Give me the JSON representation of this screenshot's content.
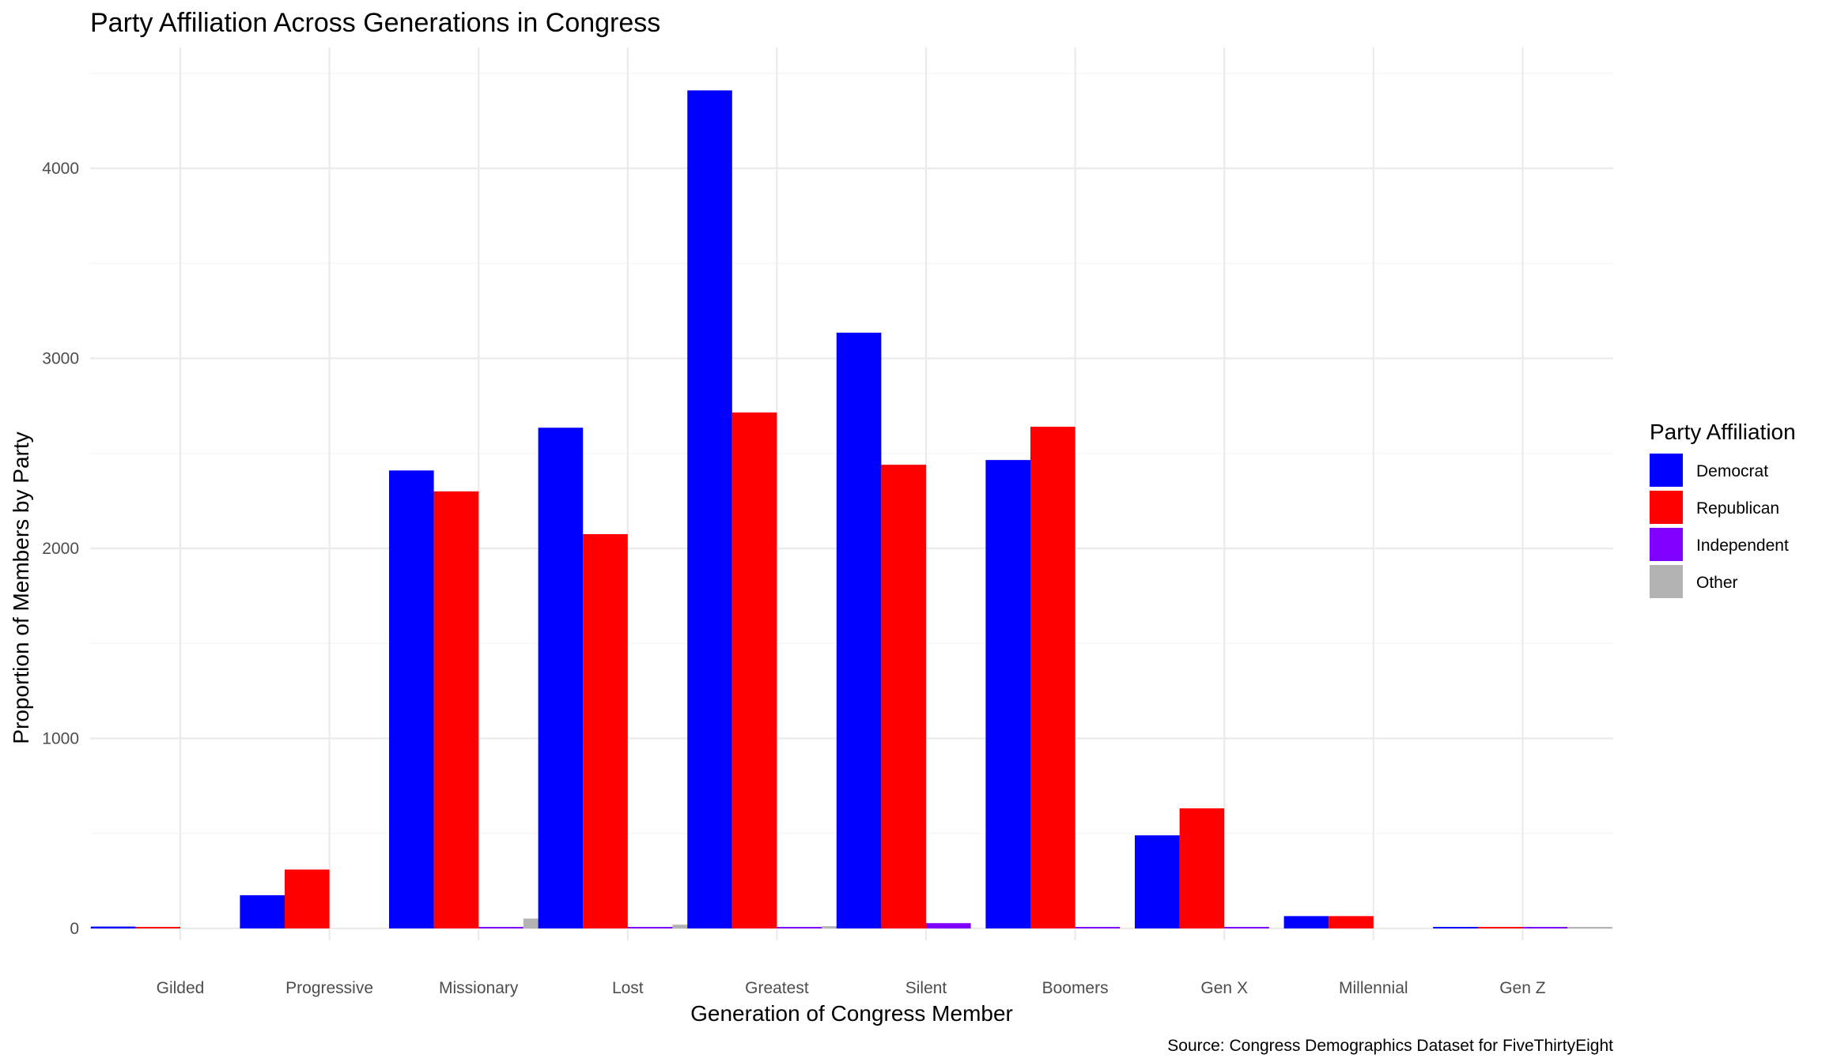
{
  "chart_data": {
    "type": "bar",
    "title": "Party Affiliation Across Generations in Congress",
    "xlabel": "Generation of Congress Member",
    "ylabel": "Proportion of Members by Party",
    "caption": "Source: Congress Demographics Dataset for FiveThirtyEight",
    "categories": [
      "Gilded",
      "Progressive",
      "Missionary",
      "Lost",
      "Greatest",
      "Silent",
      "Boomers",
      "Gen X",
      "Millennial",
      "Gen Z"
    ],
    "ylim": [
      0,
      4500
    ],
    "yticks": [
      0,
      1000,
      2000,
      3000,
      4000
    ],
    "grid": true,
    "legend": {
      "title": "Party Affiliation",
      "position": "right"
    },
    "series": [
      {
        "name": "Democrat",
        "color": "#0000FF",
        "values": [
          10,
          175,
          2410,
          2635,
          4410,
          3135,
          2465,
          490,
          65,
          2
        ]
      },
      {
        "name": "Republican",
        "color": "#FF0000",
        "values": [
          5,
          310,
          2300,
          2075,
          2715,
          2440,
          2640,
          632,
          65,
          2
        ]
      },
      {
        "name": "Independent",
        "color": "#8000FF",
        "values": [
          0,
          0,
          5,
          5,
          8,
          28,
          5,
          5,
          0,
          2
        ]
      },
      {
        "name": "Other",
        "color": "#B3B3B3",
        "values": [
          0,
          0,
          52,
          20,
          12,
          0,
          0,
          0,
          0,
          2
        ]
      }
    ]
  }
}
